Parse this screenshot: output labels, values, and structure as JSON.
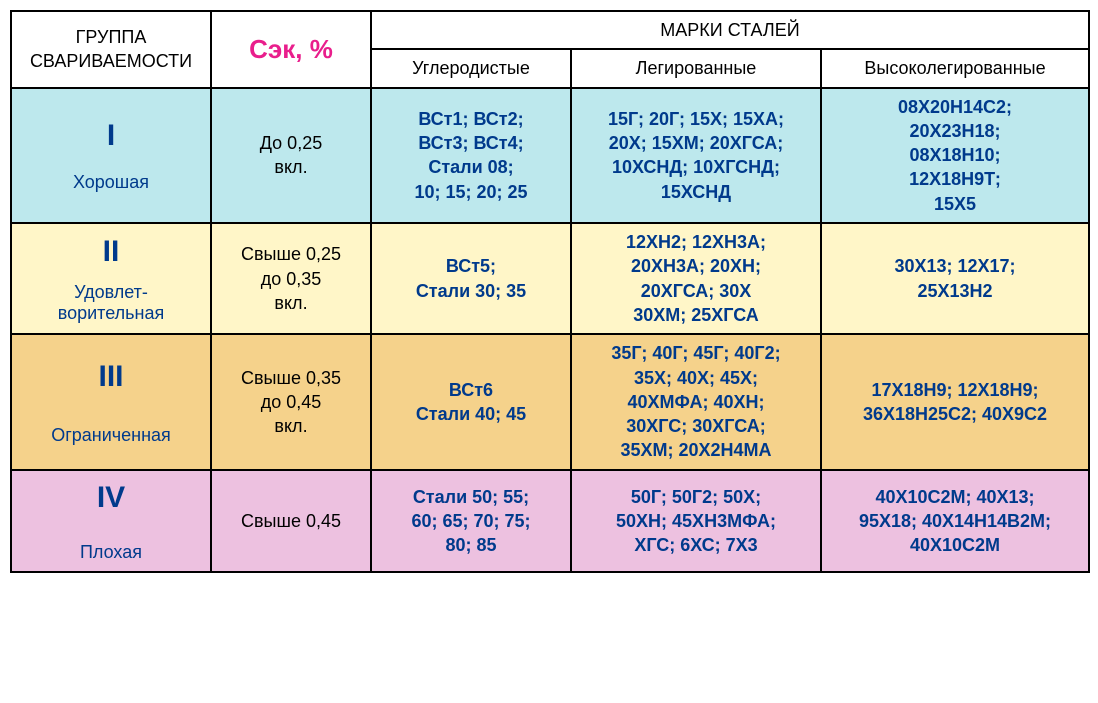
{
  "table": {
    "header": {
      "group": "ГРУППА\nСВАРИВАЕМОСТИ",
      "sek": "Сэк, %",
      "brands": "МАРКИ  СТАЛЕЙ",
      "col_carbon": "Углеродистые",
      "col_alloy": "Легированные",
      "col_highalloy": "Высоколегированные"
    },
    "rows": [
      {
        "num": "I",
        "desc": "Хорошая",
        "sek": "До 0,25\nвкл.",
        "carbon": "ВСт1; ВСт2;\nВСт3; ВСт4;\nСтали  08;\n10; 15; 20; 25",
        "alloy": "15Г; 20Г; 15Х; 15ХА;\n20Х; 15ХМ; 20ХГСА;\n10ХСНД; 10ХГСНД;\n15ХСНД",
        "highalloy": "08Х20Н14С2;\n20Х23Н18;\n08Х18Н10;\n12Х18Н9Т;\n15Х5"
      },
      {
        "num": "II",
        "desc": "Удовлет-\nворительная",
        "sek": "Свыше 0,25\nдо 0,35\nвкл.",
        "carbon": "ВСт5;\nСтали 30; 35",
        "alloy": "12ХН2; 12ХН3А;\n20ХН3А; 20ХН;\n20ХГСА; 30Х\n30ХМ; 25ХГСА",
        "highalloy": "30Х13; 12Х17;\n25Х13Н2"
      },
      {
        "num": "III",
        "desc": "Ограниченная",
        "sek": "Свыше 0,35\nдо 0,45\nвкл.",
        "carbon": "ВСт6\nСтали 40; 45",
        "alloy": "35Г; 40Г; 45Г; 40Г2;\n35Х;  40Х; 45Х;\n40ХМФА; 40ХН;\n30ХГС; 30ХГСА;\n35ХМ; 20Х2Н4МА",
        "highalloy": "17Х18Н9; 12Х18Н9;\n36Х18Н25С2; 40Х9С2"
      },
      {
        "num": "IV",
        "desc": "Плохая",
        "sek": "Свыше 0,45",
        "carbon": "Стали 50; 55;\n60; 65; 70; 75;\n80; 85",
        "alloy": "50Г; 50Г2; 50Х;\n50ХН; 45ХН3МФА;\nХГС; 6ХС; 7Х3",
        "highalloy": "40Х10С2М; 40Х13;\n95Х18; 40Х14Н14В2М;\n40Х10С2М"
      }
    ],
    "col_widths": [
      "200px",
      "160px",
      "200px",
      "250px",
      "268px"
    ],
    "row_colors": [
      "#bde8ed",
      "#fff6c8",
      "#f5d28b",
      "#edc1e0"
    ],
    "border_color": "#000000",
    "num_color": "#003a8c",
    "steel_color": "#003a8c",
    "sek_color": "#e91e8c"
  }
}
